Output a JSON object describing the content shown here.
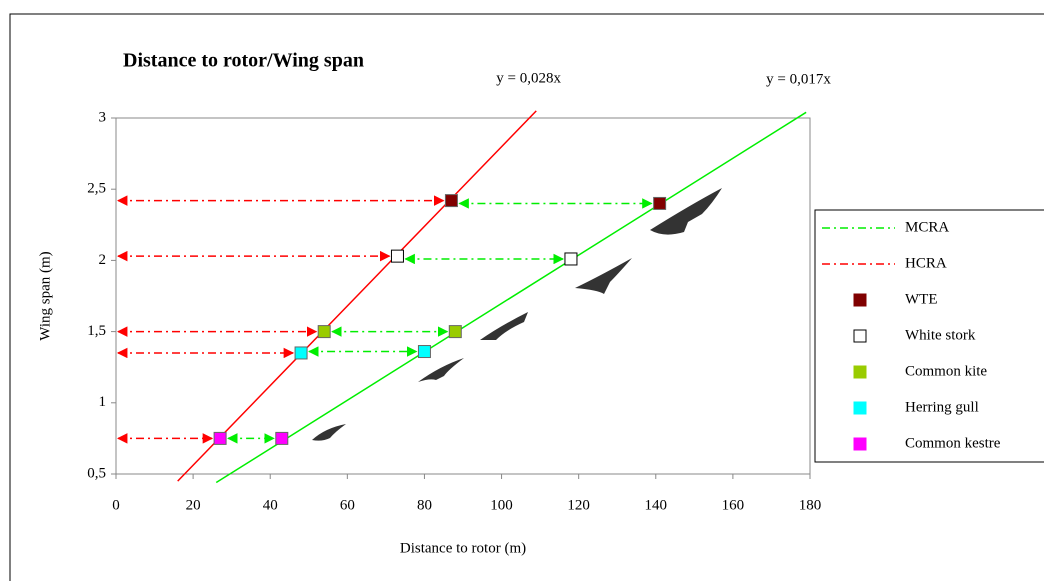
{
  "chart_data": {
    "type": "scatter",
    "title": "Distance to rotor/Wing span",
    "x_label": "Distance to rotor (m)",
    "y_label": "Wing span (m)",
    "xlim": [
      0,
      180
    ],
    "ylim": [
      0.5,
      3
    ],
    "xticks": [
      0,
      20,
      40,
      60,
      80,
      100,
      120,
      140,
      160,
      180
    ],
    "yticks": [
      {
        "value": 0.5,
        "label": "0,5"
      },
      1,
      {
        "value": 1.5,
        "label": "1,5"
      },
      2,
      {
        "value": 2.5,
        "label": "2,5"
      },
      3
    ],
    "lines": [
      {
        "name": "MCRA",
        "color": "#00ee00",
        "equation": "y = 0,017x",
        "x": [
          26,
          179
        ],
        "values": [
          0.44,
          3.04
        ]
      },
      {
        "name": "HCRA",
        "color": "#ff0000",
        "equation": "y = 0,028x",
        "x": [
          16,
          109
        ],
        "values": [
          0.45,
          3.05
        ]
      }
    ],
    "series": [
      {
        "name": "WTE",
        "color": "#800000",
        "x": [
          87,
          141
        ],
        "values": [
          2.42,
          2.4
        ]
      },
      {
        "name": "White stork",
        "color": "#ffffff",
        "x": [
          73,
          118
        ],
        "values": [
          2.03,
          2.01
        ]
      },
      {
        "name": "Common kite",
        "color": "#99cc00",
        "x": [
          54,
          88
        ],
        "values": [
          1.5,
          1.5
        ]
      },
      {
        "name": "Herring gull",
        "color": "#00ffff",
        "x": [
          48,
          80
        ],
        "values": [
          1.35,
          1.36
        ]
      },
      {
        "name": "Common kestre",
        "color": "#ff00ff",
        "x": [
          27,
          43
        ],
        "values": [
          0.75,
          0.75
        ]
      }
    ]
  }
}
